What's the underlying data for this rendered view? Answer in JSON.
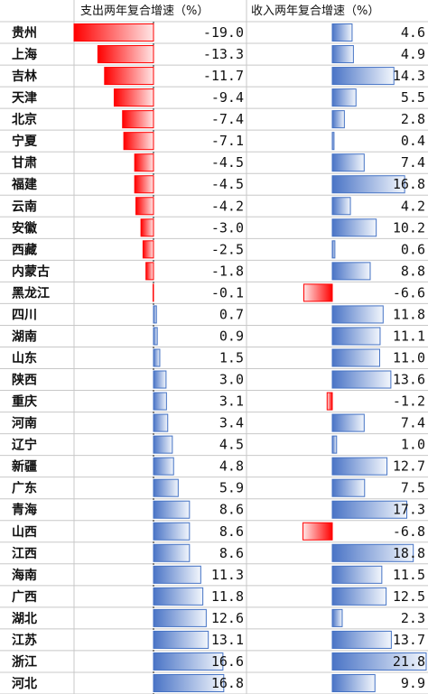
{
  "chart_data": {
    "type": "table",
    "columns": [
      {
        "header": "支出两年复合增速（%）"
      },
      {
        "header": "收入两年复合增速（%）"
      }
    ],
    "rows": [
      {
        "province": "贵州",
        "expenditure": -19.0,
        "revenue": 4.6
      },
      {
        "province": "上海",
        "expenditure": -13.3,
        "revenue": 4.9
      },
      {
        "province": "吉林",
        "expenditure": -11.7,
        "revenue": 14.3
      },
      {
        "province": "天津",
        "expenditure": -9.4,
        "revenue": 5.5
      },
      {
        "province": "北京",
        "expenditure": -7.4,
        "revenue": 2.8
      },
      {
        "province": "宁夏",
        "expenditure": -7.1,
        "revenue": 0.4
      },
      {
        "province": "甘肃",
        "expenditure": -4.5,
        "revenue": 7.4
      },
      {
        "province": "福建",
        "expenditure": -4.5,
        "revenue": 16.8
      },
      {
        "province": "云南",
        "expenditure": -4.2,
        "revenue": 4.2
      },
      {
        "province": "安徽",
        "expenditure": -3.0,
        "revenue": 10.2
      },
      {
        "province": "西藏",
        "expenditure": -2.5,
        "revenue": 0.6
      },
      {
        "province": "内蒙古",
        "expenditure": -1.8,
        "revenue": 8.8
      },
      {
        "province": "黑龙江",
        "expenditure": -0.1,
        "revenue": -6.6
      },
      {
        "province": "四川",
        "expenditure": 0.7,
        "revenue": 11.8
      },
      {
        "province": "湖南",
        "expenditure": 0.9,
        "revenue": 11.1
      },
      {
        "province": "山东",
        "expenditure": 1.5,
        "revenue": 11.0
      },
      {
        "province": "陕西",
        "expenditure": 3.0,
        "revenue": 13.6
      },
      {
        "province": "重庆",
        "expenditure": 3.1,
        "revenue": -1.2
      },
      {
        "province": "河南",
        "expenditure": 3.4,
        "revenue": 7.4
      },
      {
        "province": "辽宁",
        "expenditure": 4.5,
        "revenue": 1.0
      },
      {
        "province": "新疆",
        "expenditure": 4.8,
        "revenue": 12.7
      },
      {
        "province": "广东",
        "expenditure": 5.9,
        "revenue": 7.5
      },
      {
        "province": "青海",
        "expenditure": 8.6,
        "revenue": 17.3
      },
      {
        "province": "山西",
        "expenditure": 8.6,
        "revenue": -6.8
      },
      {
        "province": "江西",
        "expenditure": 8.6,
        "revenue": 18.8
      },
      {
        "province": "海南",
        "expenditure": 11.3,
        "revenue": 11.5
      },
      {
        "province": "广西",
        "expenditure": 11.8,
        "revenue": 12.5
      },
      {
        "province": "湖北",
        "expenditure": 12.6,
        "revenue": 2.3
      },
      {
        "province": "江苏",
        "expenditure": 13.1,
        "revenue": 13.7
      },
      {
        "province": "浙江",
        "expenditure": 16.6,
        "revenue": 21.8
      },
      {
        "province": "河北",
        "expenditure": 16.8,
        "revenue": 9.9
      }
    ],
    "value_format": "0.0",
    "colors": {
      "negative": "#ff0000",
      "positive": "#4472c4",
      "grid": "#c8c8c8",
      "zero_line": "#222222"
    }
  }
}
